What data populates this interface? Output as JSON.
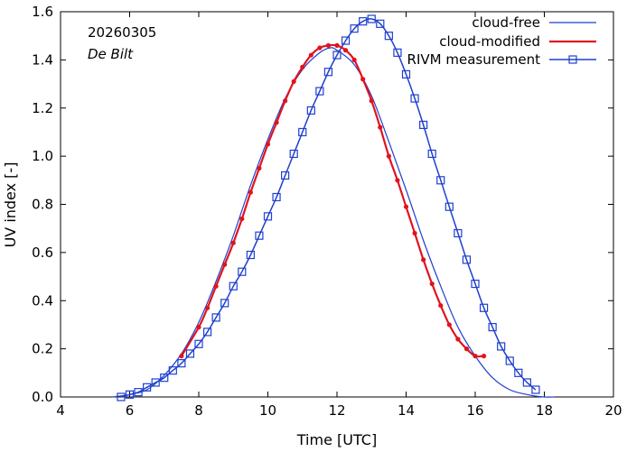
{
  "chart_data": {
    "type": "line",
    "date_label": "20260305",
    "station_label": "De Bilt",
    "xlabel": "Time  [UTC]",
    "ylabel": "UV index  [-]",
    "xlim": [
      4,
      20
    ],
    "ylim": [
      0,
      1.6
    ],
    "x_ticks": [
      4,
      6,
      8,
      10,
      12,
      14,
      16,
      18,
      20
    ],
    "x_tick_labels": [
      "4",
      "6",
      "8",
      "10",
      "12",
      "14",
      "16",
      "18",
      "20"
    ],
    "y_ticks": [
      0,
      0.2,
      0.4,
      0.6,
      0.8,
      1.0,
      1.2,
      1.4,
      1.6
    ],
    "y_tick_labels": [
      "0.0",
      "0.2",
      "0.4",
      "0.6",
      "0.8",
      "1.0",
      "1.2",
      "1.4",
      "1.6"
    ],
    "legend_position": "top-right",
    "series": [
      {
        "name": "cloud-free",
        "color": "#1f3fcf",
        "x": [
          5.5,
          6.0,
          6.5,
          7.0,
          7.5,
          8.0,
          8.5,
          9.0,
          9.5,
          10.0,
          10.5,
          11.0,
          11.5,
          11.8,
          12.0,
          12.5,
          13.0,
          13.5,
          14.0,
          14.5,
          15.0,
          15.5,
          16.0,
          16.5,
          17.0,
          17.5,
          18.0,
          18.3
        ],
        "y": [
          0.0,
          0.01,
          0.03,
          0.09,
          0.18,
          0.31,
          0.48,
          0.67,
          0.88,
          1.07,
          1.24,
          1.36,
          1.43,
          1.45,
          1.44,
          1.38,
          1.25,
          1.06,
          0.86,
          0.65,
          0.46,
          0.29,
          0.17,
          0.08,
          0.03,
          0.01,
          0.0,
          0.0
        ]
      },
      {
        "name": "cloud-modified",
        "color": "#e0141e",
        "x": [
          7.5,
          8.0,
          8.25,
          8.5,
          8.75,
          9.0,
          9.25,
          9.5,
          9.75,
          10.0,
          10.25,
          10.5,
          10.75,
          11.0,
          11.25,
          11.5,
          11.75,
          12.0,
          12.25,
          12.5,
          12.75,
          13.0,
          13.25,
          13.5,
          13.75,
          14.0,
          14.25,
          14.5,
          14.75,
          15.0,
          15.25,
          15.5,
          15.75,
          16.0,
          16.25
        ],
        "y": [
          0.17,
          0.29,
          0.37,
          0.46,
          0.55,
          0.64,
          0.74,
          0.85,
          0.95,
          1.05,
          1.14,
          1.23,
          1.31,
          1.37,
          1.42,
          1.45,
          1.46,
          1.46,
          1.44,
          1.4,
          1.32,
          1.23,
          1.12,
          1.0,
          0.9,
          0.79,
          0.68,
          0.57,
          0.47,
          0.38,
          0.3,
          0.24,
          0.2,
          0.17,
          0.17
        ]
      },
      {
        "name": "RIVM measurement",
        "color": "#1f3fcf",
        "x": [
          5.75,
          6.0,
          6.25,
          6.5,
          6.75,
          7.0,
          7.25,
          7.5,
          7.75,
          8.0,
          8.25,
          8.5,
          8.75,
          9.0,
          9.25,
          9.5,
          9.75,
          10.0,
          10.25,
          10.5,
          10.75,
          11.0,
          11.25,
          11.5,
          11.75,
          12.0,
          12.25,
          12.5,
          12.75,
          13.0,
          13.25,
          13.5,
          13.75,
          14.0,
          14.25,
          14.5,
          14.75,
          15.0,
          15.25,
          15.5,
          15.75,
          16.0,
          16.25,
          16.5,
          16.75,
          17.0,
          17.25,
          17.5,
          17.75
        ],
        "y": [
          0.0,
          0.01,
          0.02,
          0.04,
          0.06,
          0.08,
          0.11,
          0.14,
          0.18,
          0.22,
          0.27,
          0.33,
          0.39,
          0.46,
          0.52,
          0.59,
          0.67,
          0.75,
          0.83,
          0.92,
          1.01,
          1.1,
          1.19,
          1.27,
          1.35,
          1.42,
          1.48,
          1.53,
          1.56,
          1.57,
          1.55,
          1.5,
          1.43,
          1.34,
          1.24,
          1.13,
          1.01,
          0.9,
          0.79,
          0.68,
          0.57,
          0.47,
          0.37,
          0.29,
          0.21,
          0.15,
          0.1,
          0.06,
          0.03
        ]
      }
    ]
  }
}
